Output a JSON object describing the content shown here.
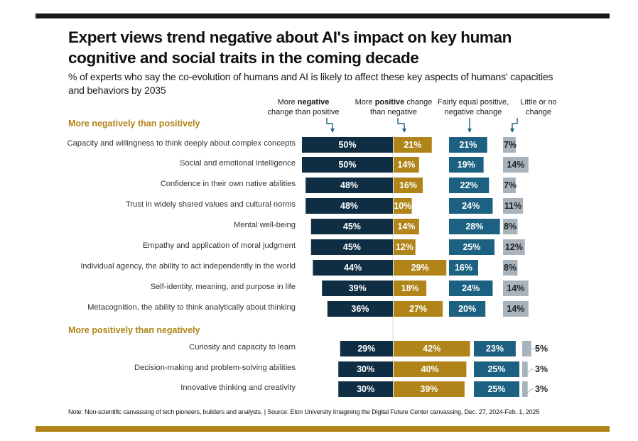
{
  "title": "Expert views trend negative about AI's impact on key human cognitive and social traits in the coming decade",
  "subtitle": "% of experts who say the co-evolution of humans and AI is likely to affect these key aspects of humans' capacities and behaviors by 2035",
  "column_headers": {
    "negative_pre": "More ",
    "negative_bold": "negative",
    "negative_post": "change than positive",
    "positive_pre": "More ",
    "positive_bold": "positive",
    "positive_mid": " change",
    "positive_post": "than negative",
    "equal_line1": "Fairly equal positive,",
    "equal_line2": "negative change",
    "little_line1": "Little or no",
    "little_line2": "change"
  },
  "note": "Note: Non-scientific canvassing of tech pioneers, builders and analysts. | Source: Elon University Imagining the Digital Future Center canvassing,  Dec. 27, 2024-Feb. 1, 2025",
  "colors": {
    "negative": "#0f2e44",
    "positive": "#b08418",
    "equal": "#1c6182",
    "little": "#a9b3bc",
    "group_label": "#b08418"
  },
  "chart_data": {
    "type": "bar",
    "title": "Expert views trend negative about AI's impact on key human cognitive and social traits in the coming decade",
    "series_names": [
      "More negative change than positive",
      "More positive change than negative",
      "Fairly equal positive, negative change",
      "Little or no change"
    ],
    "unit": "%",
    "groups": [
      {
        "label": "More negatively than positively",
        "rows": [
          {
            "label": "Capacity and willingness to think deeply about complex concepts",
            "negative": 50,
            "positive": 21,
            "equal": 21,
            "little": 7
          },
          {
            "label": "Social and emotional intelligence",
            "negative": 50,
            "positive": 14,
            "equal": 19,
            "little": 14
          },
          {
            "label": "Confidence in their own native abilities",
            "negative": 48,
            "positive": 16,
            "equal": 22,
            "little": 7
          },
          {
            "label": "Trust in widely shared values and cultural norms",
            "negative": 48,
            "positive": 10,
            "equal": 24,
            "little": 11
          },
          {
            "label": "Mental well-being",
            "negative": 45,
            "positive": 14,
            "equal": 28,
            "little": 8
          },
          {
            "label": "Empathy and application of moral judgment",
            "negative": 45,
            "positive": 12,
            "equal": 25,
            "little": 12
          },
          {
            "label": "Individual agency, the ability to act independently in the world",
            "negative": 44,
            "positive": 29,
            "equal": 16,
            "little": 8
          },
          {
            "label": "Self-identity, meaning, and purpose in life",
            "negative": 39,
            "positive": 18,
            "equal": 24,
            "little": 14
          },
          {
            "label": "Metacognition, the ability to think analytically about thinking",
            "negative": 36,
            "positive": 27,
            "equal": 20,
            "little": 14
          }
        ]
      },
      {
        "label": "More positively than negatively",
        "rows": [
          {
            "label": "Curiosity and capacity to learn",
            "negative": 29,
            "positive": 42,
            "equal": 23,
            "little": 5
          },
          {
            "label": "Decision-making and problem-solving abilities",
            "negative": 30,
            "positive": 40,
            "equal": 25,
            "little": 3
          },
          {
            "label": "Innovative thinking and creativity",
            "negative": 30,
            "positive": 39,
            "equal": 25,
            "little": 3
          }
        ]
      }
    ]
  }
}
